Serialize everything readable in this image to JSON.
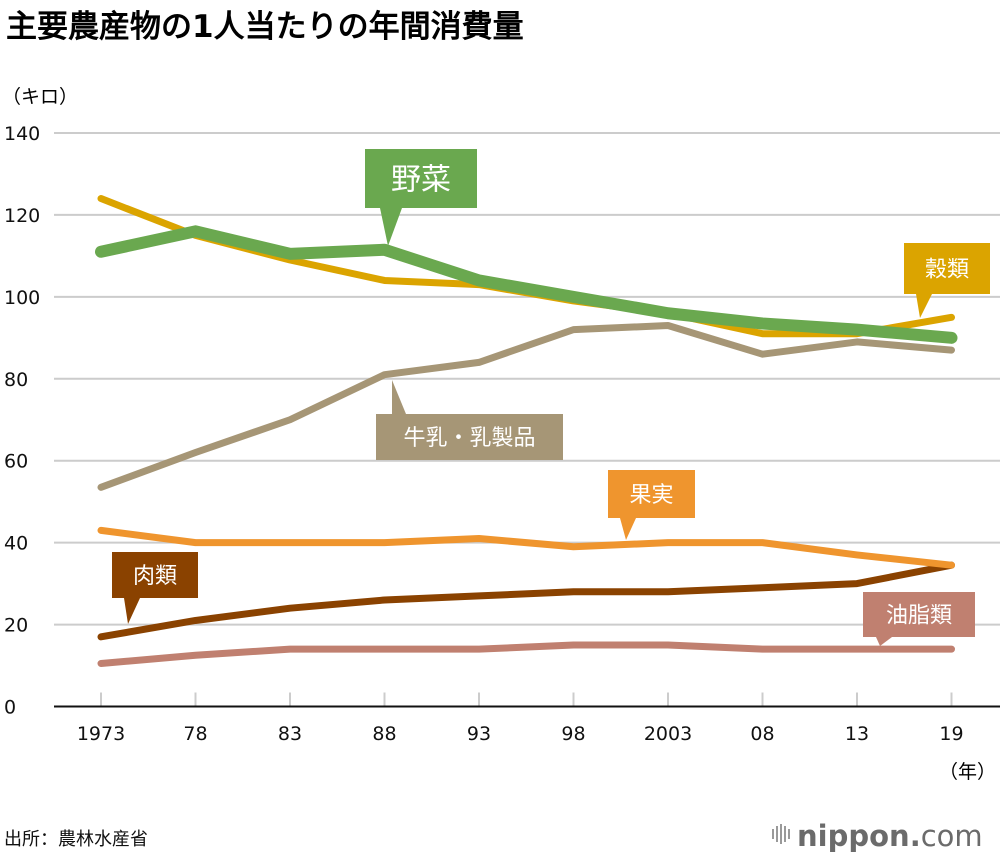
{
  "chart_data": {
    "type": "line",
    "title": "主要農産物の1人当たりの年間消費量",
    "ylabel": "（キロ）",
    "xlabel": "（年）",
    "ylim": [
      0,
      140
    ],
    "yticks": [
      0,
      20,
      40,
      60,
      80,
      100,
      120,
      140
    ],
    "grid": true,
    "categories": [
      "1973",
      "78",
      "83",
      "88",
      "93",
      "98",
      "2003",
      "08",
      "13",
      "19"
    ],
    "series": [
      {
        "key": "grain",
        "name": "穀類",
        "color": "#dba400",
        "values": [
          124,
          115,
          109,
          104,
          103,
          99,
          96,
          91,
          91,
          95
        ]
      },
      {
        "key": "vegetables",
        "name": "野菜",
        "color": "#6aa84f",
        "values": [
          111,
          116,
          110.5,
          111.5,
          104,
          100,
          96,
          93.5,
          92,
          90
        ]
      },
      {
        "key": "dairy",
        "name": "牛乳・乳製品",
        "color": "#a69676",
        "values": [
          53.5,
          62,
          70,
          81,
          84,
          92,
          93,
          86,
          89,
          87
        ]
      },
      {
        "key": "fruit",
        "name": "果実",
        "color": "#ef952e",
        "values": [
          43,
          40,
          40,
          40,
          41,
          39,
          40,
          40,
          37,
          34.5
        ]
      },
      {
        "key": "meat",
        "name": "肉類",
        "color": "#8a4200",
        "values": [
          17,
          21,
          24,
          26,
          27,
          28,
          28,
          29,
          30,
          34.5
        ]
      },
      {
        "key": "oils",
        "name": "油脂類",
        "color": "#c08070",
        "values": [
          10.5,
          12.5,
          14,
          14,
          14,
          15,
          15,
          14,
          14,
          14
        ]
      }
    ],
    "annotations": [
      {
        "series": "vegetables",
        "text": "野菜",
        "near": "1988"
      },
      {
        "series": "grain",
        "text": "穀類",
        "near": "2019"
      },
      {
        "series": "dairy",
        "text": "牛乳・乳製品",
        "near": "1988"
      },
      {
        "series": "fruit",
        "text": "果実",
        "near": "2003"
      },
      {
        "series": "meat",
        "text": "肉類",
        "near": "1973"
      },
      {
        "series": "oils",
        "text": "油脂類",
        "near": "2019"
      }
    ]
  },
  "footer": {
    "source": "出所：農林水産省",
    "logo_main": "nippon",
    "logo_dot": ".",
    "logo_com": "com",
    "logo_dot_color": "#e60012"
  }
}
